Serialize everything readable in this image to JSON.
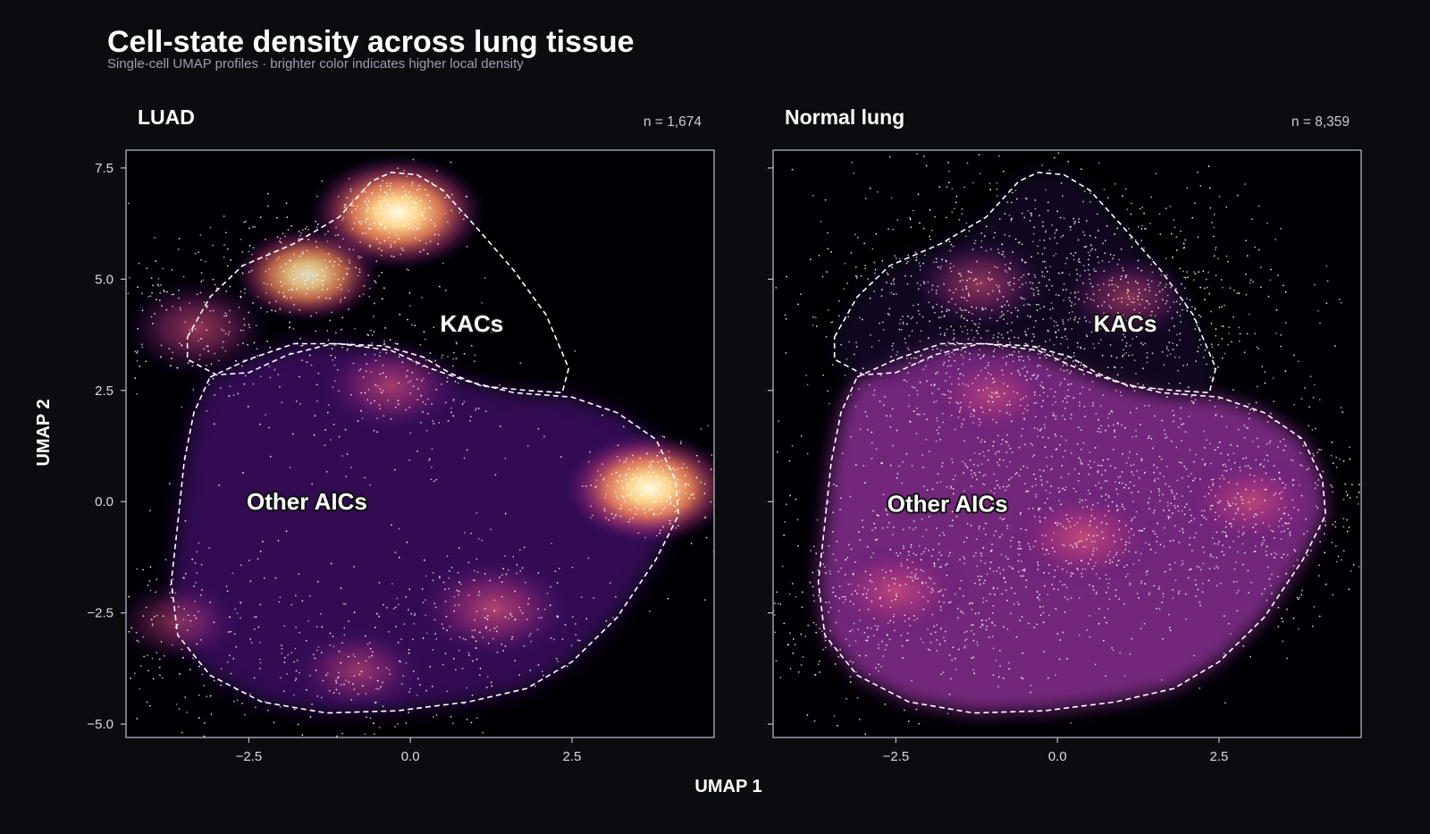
{
  "figure": {
    "title": "Cell-state density across lung tissue",
    "subtitle": "Single-cell UMAP profiles · brighter color indicates higher local density",
    "xlabel": "UMAP 1",
    "ylabel": "UMAP 2"
  },
  "colors": {
    "background": "#0b0c10",
    "plot_background": "#000004",
    "colormap": "magma",
    "outline": "#ffffff",
    "points": "#ffffff"
  },
  "chart_data": [
    {
      "type": "heatmap",
      "subtype": "umap-density-scatter",
      "title": "LUAD",
      "n_label": "n = 1,674",
      "n_cells": 1674,
      "xlim": [
        -4.4,
        4.7
      ],
      "ylim": [
        -5.3,
        7.9
      ],
      "xticks": [
        -2.5,
        0.0,
        2.5
      ],
      "xtick_labels": [
        "−2.5",
        "0.0",
        "2.5"
      ],
      "yticks": [
        -5.0,
        -2.5,
        0.0,
        2.5,
        5.0,
        7.5
      ],
      "ytick_labels": [
        "−5.0",
        "−2.5",
        "0.0",
        "2.5",
        "5.0",
        "7.5"
      ],
      "regions": [
        {
          "label": "KACs",
          "label_pos": [
            0.95,
            4.0
          ]
        },
        {
          "label": "Other AICs",
          "label_pos": [
            -1.6,
            0.0
          ]
        }
      ],
      "density_peaks": [
        {
          "x": -0.2,
          "y": 6.5,
          "intensity": 1.0
        },
        {
          "x": 3.7,
          "y": 0.3,
          "intensity": 0.95
        },
        {
          "x": -1.6,
          "y": 5.1,
          "intensity": 0.7
        },
        {
          "x": 1.3,
          "y": -2.4,
          "intensity": 0.62
        },
        {
          "x": -3.3,
          "y": 3.9,
          "intensity": 0.52
        },
        {
          "x": -0.3,
          "y": 2.6,
          "intensity": 0.5
        },
        {
          "x": -0.8,
          "y": -3.8,
          "intensity": 0.4
        },
        {
          "x": -3.6,
          "y": -2.7,
          "intensity": 0.35
        }
      ]
    },
    {
      "type": "heatmap",
      "subtype": "umap-density-scatter",
      "title": "Normal lung",
      "n_label": "n = 8,359",
      "n_cells": 8359,
      "xlim": [
        -4.4,
        4.7
      ],
      "ylim": [
        -5.3,
        7.9
      ],
      "xticks": [
        -2.5,
        0.0,
        2.5
      ],
      "xtick_labels": [
        "−2.5",
        "0.0",
        "2.5"
      ],
      "yticks": [
        -5.0,
        -2.5,
        0.0,
        2.5,
        5.0,
        7.5
      ],
      "ytick_labels": [
        "−5.0",
        "−2.5",
        "0.0",
        "2.5",
        "5.0",
        "7.5"
      ],
      "regions": [
        {
          "label": "KACs",
          "label_pos": [
            1.05,
            4.0
          ]
        },
        {
          "label": "Other AICs",
          "label_pos": [
            -1.7,
            -0.05
          ]
        }
      ],
      "density_peaks": [
        {
          "x": 0.4,
          "y": -0.8,
          "intensity": 0.62
        },
        {
          "x": -2.5,
          "y": -2.0,
          "intensity": 0.55
        },
        {
          "x": 3.0,
          "y": 0.0,
          "intensity": 0.5
        },
        {
          "x": -1.2,
          "y": 4.9,
          "intensity": 0.45
        },
        {
          "x": 1.1,
          "y": 4.6,
          "intensity": 0.4
        },
        {
          "x": -1.0,
          "y": 2.4,
          "intensity": 0.4
        }
      ]
    }
  ]
}
